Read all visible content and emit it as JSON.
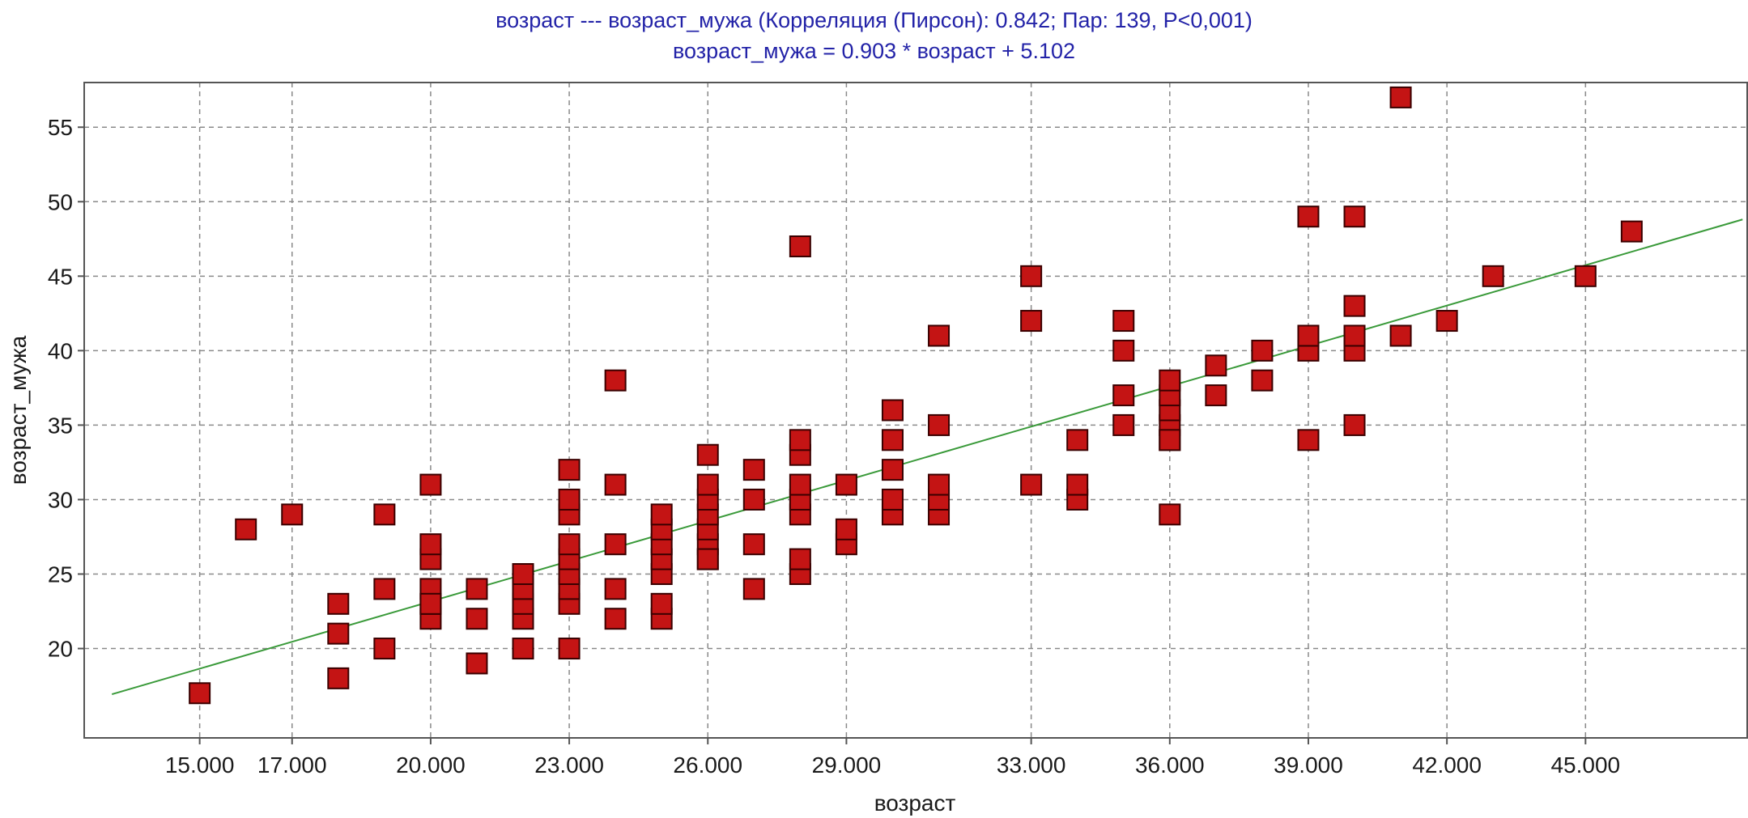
{
  "chart_data": {
    "type": "scatter",
    "title": "возраст --- возраст_мужа (Корреляция (Пирсон): 0.842; Пар: 139, P<0,001)",
    "subtitle": "возраст_мужа = 0.903 * возраст + 5.102",
    "xlabel": "возраст",
    "ylabel": "возраст_мужа",
    "xlim": [
      12.5,
      48.5
    ],
    "ylim": [
      14,
      58
    ],
    "x_ticks": [
      15,
      17,
      20,
      23,
      26,
      29,
      33,
      36,
      39,
      42,
      45
    ],
    "x_tick_labels": [
      "15.000",
      "17.000",
      "20.000",
      "23.000",
      "26.000",
      "29.000",
      "33.000",
      "36.000",
      "39.000",
      "42.000",
      "45.000"
    ],
    "y_ticks": [
      20,
      25,
      30,
      35,
      40,
      45,
      50,
      55
    ],
    "y_tick_labels": [
      "20",
      "25",
      "30",
      "35",
      "40",
      "45",
      "50",
      "55"
    ],
    "grid": true,
    "regression": {
      "slope": 0.903,
      "intercept": 5.102,
      "x_range": [
        13.1,
        48.4
      ],
      "color": "#3a9a3a"
    },
    "marker_color": "#c41414",
    "series": [
      {
        "x": [
          15,
          16,
          17,
          18,
          18,
          18,
          19,
          19,
          19,
          20,
          20,
          20,
          20,
          20,
          20,
          20,
          21,
          21,
          21,
          22,
          22,
          22,
          22,
          22,
          23,
          23,
          23,
          23,
          23,
          23,
          23,
          23,
          23,
          24,
          24,
          24,
          24,
          24,
          25,
          25,
          25,
          25,
          25,
          25,
          25,
          26,
          26,
          26,
          26,
          26,
          26,
          26,
          26,
          27,
          27,
          27,
          27,
          28,
          28,
          28,
          28,
          28,
          28,
          28,
          28,
          29,
          29,
          29,
          30,
          30,
          30,
          30,
          30,
          31,
          31,
          31,
          31,
          31,
          33,
          33,
          33,
          34,
          34,
          34,
          35,
          35,
          35,
          35,
          36,
          36,
          36,
          36,
          36,
          36,
          36,
          37,
          37,
          38,
          38,
          39,
          39,
          39,
          39,
          40,
          40,
          40,
          40,
          40,
          41,
          41,
          42,
          43,
          45,
          46
        ],
        "y": [
          17,
          28,
          29,
          18,
          21,
          23,
          20,
          24,
          29,
          22,
          23,
          24,
          26,
          27,
          31,
          23,
          19,
          22,
          24,
          20,
          22,
          23,
          24,
          25,
          20,
          23,
          24,
          25,
          26,
          27,
          29,
          30,
          32,
          22,
          24,
          27,
          31,
          38,
          22,
          23,
          25,
          26,
          27,
          28,
          29,
          26,
          27,
          28,
          29,
          30,
          31,
          33,
          26,
          24,
          27,
          30,
          32,
          25,
          26,
          29,
          30,
          31,
          33,
          34,
          47,
          27,
          28,
          31,
          29,
          30,
          32,
          34,
          36,
          29,
          30,
          31,
          35,
          41,
          31,
          42,
          45,
          30,
          31,
          34,
          35,
          37,
          40,
          42,
          29,
          34,
          35,
          36,
          37,
          38,
          34,
          37,
          39,
          38,
          40,
          34,
          40,
          41,
          49,
          35,
          40,
          41,
          43,
          49,
          41,
          57,
          42,
          45,
          45,
          48
        ]
      }
    ]
  }
}
